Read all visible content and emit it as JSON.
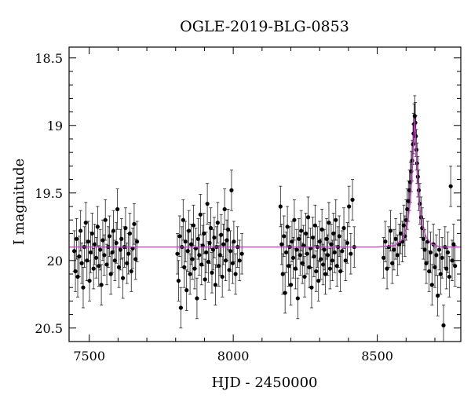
{
  "chart_data": {
    "type": "scatter",
    "title": "OGLE-2019-BLG-0853",
    "xlabel": "HJD - 2450000",
    "ylabel": "I magnitude",
    "xlim": [
      7430,
      8790
    ],
    "ylim": [
      20.6,
      18.42
    ],
    "y_inverted": true,
    "x_ticks": [
      7500,
      8000,
      8500
    ],
    "y_ticks": [
      18.5,
      19,
      19.5,
      20,
      20.5
    ],
    "x_tick_labels": [
      "7500",
      "8000",
      "8500"
    ],
    "y_tick_labels": [
      "18.5",
      "19",
      "19.5",
      "20",
      "20.5"
    ],
    "grid": false,
    "legend": "none",
    "colors": {
      "points": "#000000",
      "model": "#cc33cc",
      "frame": "#000000"
    },
    "baseline_mag": 19.9,
    "observing_seasons": [
      [
        7440,
        7670
      ],
      [
        7800,
        8060
      ],
      [
        8160,
        8430
      ],
      [
        8520,
        8775
      ]
    ],
    "observation_gaps": "no data between seasons",
    "peak": {
      "t0": 8630,
      "peak_mag": 18.93
    },
    "model_curve": {
      "x": [
        7430,
        8000,
        8500,
        8560,
        8590,
        8605,
        8615,
        8622,
        8627,
        8630,
        8633,
        8638,
        8645,
        8655,
        8670,
        8690,
        8720,
        8790
      ],
      "y": [
        19.9,
        19.9,
        19.9,
        19.89,
        19.84,
        19.73,
        19.56,
        19.32,
        19.08,
        18.95,
        19.08,
        19.32,
        19.56,
        19.73,
        19.83,
        19.88,
        19.9,
        19.9
      ]
    },
    "typical_error_bar_mag": 0.15,
    "points": [
      {
        "x": 7448,
        "y": 19.93
      },
      {
        "x": 7452,
        "y": 20.08
      },
      {
        "x": 7456,
        "y": 19.84
      },
      {
        "x": 7460,
        "y": 20.12
      },
      {
        "x": 7465,
        "y": 19.97
      },
      {
        "x": 7470,
        "y": 19.78
      },
      {
        "x": 7474,
        "y": 20.02
      },
      {
        "x": 7479,
        "y": 20.2
      },
      {
        "x": 7483,
        "y": 19.9
      },
      {
        "x": 7488,
        "y": 19.72
      },
      {
        "x": 7492,
        "y": 20.0
      },
      {
        "x": 7497,
        "y": 19.86
      },
      {
        "x": 7501,
        "y": 20.15
      },
      {
        "x": 7505,
        "y": 19.94
      },
      {
        "x": 7510,
        "y": 19.8
      },
      {
        "x": 7515,
        "y": 20.06
      },
      {
        "x": 7519,
        "y": 19.88
      },
      {
        "x": 7524,
        "y": 19.98
      },
      {
        "x": 7529,
        "y": 19.75
      },
      {
        "x": 7533,
        "y": 20.04
      },
      {
        "x": 7538,
        "y": 19.92
      },
      {
        "x": 7542,
        "y": 20.18
      },
      {
        "x": 7547,
        "y": 19.85
      },
      {
        "x": 7552,
        "y": 19.96
      },
      {
        "x": 7556,
        "y": 19.7
      },
      {
        "x": 7561,
        "y": 20.03
      },
      {
        "x": 7566,
        "y": 19.9
      },
      {
        "x": 7570,
        "y": 19.82
      },
      {
        "x": 7575,
        "y": 20.1
      },
      {
        "x": 7580,
        "y": 19.94
      },
      {
        "x": 7584,
        "y": 19.78
      },
      {
        "x": 7589,
        "y": 20.0
      },
      {
        "x": 7594,
        "y": 19.87
      },
      {
        "x": 7598,
        "y": 19.62
      },
      {
        "x": 7603,
        "y": 20.05
      },
      {
        "x": 7608,
        "y": 19.92
      },
      {
        "x": 7612,
        "y": 19.84
      },
      {
        "x": 7617,
        "y": 20.13
      },
      {
        "x": 7622,
        "y": 19.9
      },
      {
        "x": 7626,
        "y": 19.76
      },
      {
        "x": 7631,
        "y": 20.02
      },
      {
        "x": 7636,
        "y": 19.95
      },
      {
        "x": 7641,
        "y": 19.8
      },
      {
        "x": 7646,
        "y": 20.08
      },
      {
        "x": 7651,
        "y": 19.91
      },
      {
        "x": 7656,
        "y": 19.73
      },
      {
        "x": 7661,
        "y": 19.99
      },
      {
        "x": 7666,
        "y": 19.86
      },
      {
        "x": 7806,
        "y": 19.95
      },
      {
        "x": 7810,
        "y": 20.15
      },
      {
        "x": 7814,
        "y": 19.82
      },
      {
        "x": 7818,
        "y": 20.35
      },
      {
        "x": 7822,
        "y": 19.9
      },
      {
        "x": 7826,
        "y": 19.7
      },
      {
        "x": 7830,
        "y": 20.05
      },
      {
        "x": 7834,
        "y": 19.86
      },
      {
        "x": 7838,
        "y": 20.22
      },
      {
        "x": 7842,
        "y": 19.93
      },
      {
        "x": 7846,
        "y": 19.78
      },
      {
        "x": 7850,
        "y": 20.1
      },
      {
        "x": 7854,
        "y": 19.88
      },
      {
        "x": 7858,
        "y": 19.99
      },
      {
        "x": 7862,
        "y": 19.74
      },
      {
        "x": 7866,
        "y": 20.06
      },
      {
        "x": 7870,
        "y": 19.91
      },
      {
        "x": 7874,
        "y": 20.28
      },
      {
        "x": 7878,
        "y": 19.84
      },
      {
        "x": 7882,
        "y": 19.96
      },
      {
        "x": 7886,
        "y": 19.66
      },
      {
        "x": 7890,
        "y": 20.03
      },
      {
        "x": 7894,
        "y": 19.89
      },
      {
        "x": 7898,
        "y": 19.8
      },
      {
        "x": 7902,
        "y": 20.14
      },
      {
        "x": 7906,
        "y": 19.94
      },
      {
        "x": 7910,
        "y": 19.58
      },
      {
        "x": 7914,
        "y": 20.01
      },
      {
        "x": 7918,
        "y": 19.87
      },
      {
        "x": 7922,
        "y": 19.76
      },
      {
        "x": 7926,
        "y": 20.09
      },
      {
        "x": 7930,
        "y": 19.92
      },
      {
        "x": 7934,
        "y": 19.83
      },
      {
        "x": 7938,
        "y": 20.18
      },
      {
        "x": 7942,
        "y": 19.9
      },
      {
        "x": 7946,
        "y": 19.72
      },
      {
        "x": 7950,
        "y": 20.04
      },
      {
        "x": 7954,
        "y": 19.96
      },
      {
        "x": 7958,
        "y": 19.81
      },
      {
        "x": 7962,
        "y": 20.12
      },
      {
        "x": 7966,
        "y": 19.88
      },
      {
        "x": 7970,
        "y": 19.62
      },
      {
        "x": 7974,
        "y": 20.0
      },
      {
        "x": 7978,
        "y": 19.85
      },
      {
        "x": 7982,
        "y": 19.77
      },
      {
        "x": 7986,
        "y": 20.07
      },
      {
        "x": 7990,
        "y": 19.93
      },
      {
        "x": 7994,
        "y": 19.48
      },
      {
        "x": 7998,
        "y": 20.02
      },
      {
        "x": 8002,
        "y": 19.86
      },
      {
        "x": 8008,
        "y": 20.1
      },
      {
        "x": 8015,
        "y": 19.9
      },
      {
        "x": 8022,
        "y": 20.0
      },
      {
        "x": 8030,
        "y": 19.95
      },
      {
        "x": 8164,
        "y": 19.6
      },
      {
        "x": 8168,
        "y": 19.88
      },
      {
        "x": 8172,
        "y": 20.1
      },
      {
        "x": 8176,
        "y": 19.82
      },
      {
        "x": 8180,
        "y": 20.24
      },
      {
        "x": 8184,
        "y": 19.94
      },
      {
        "x": 8188,
        "y": 19.75
      },
      {
        "x": 8192,
        "y": 20.04
      },
      {
        "x": 8196,
        "y": 19.9
      },
      {
        "x": 8200,
        "y": 20.18
      },
      {
        "x": 8204,
        "y": 19.86
      },
      {
        "x": 8208,
        "y": 19.98
      },
      {
        "x": 8212,
        "y": 19.7
      },
      {
        "x": 8216,
        "y": 20.06
      },
      {
        "x": 8220,
        "y": 19.92
      },
      {
        "x": 8224,
        "y": 20.28
      },
      {
        "x": 8228,
        "y": 19.84
      },
      {
        "x": 8232,
        "y": 19.96
      },
      {
        "x": 8236,
        "y": 19.78
      },
      {
        "x": 8240,
        "y": 20.02
      },
      {
        "x": 8244,
        "y": 19.89
      },
      {
        "x": 8248,
        "y": 20.12
      },
      {
        "x": 8252,
        "y": 19.8
      },
      {
        "x": 8256,
        "y": 19.95
      },
      {
        "x": 8260,
        "y": 19.68
      },
      {
        "x": 8264,
        "y": 20.05
      },
      {
        "x": 8268,
        "y": 19.91
      },
      {
        "x": 8272,
        "y": 20.2
      },
      {
        "x": 8276,
        "y": 19.83
      },
      {
        "x": 8280,
        "y": 19.97
      },
      {
        "x": 8284,
        "y": 19.74
      },
      {
        "x": 8288,
        "y": 20.08
      },
      {
        "x": 8292,
        "y": 19.9
      },
      {
        "x": 8296,
        "y": 20.15
      },
      {
        "x": 8300,
        "y": 19.86
      },
      {
        "x": 8304,
        "y": 19.99
      },
      {
        "x": 8308,
        "y": 19.77
      },
      {
        "x": 8312,
        "y": 20.03
      },
      {
        "x": 8316,
        "y": 19.92
      },
      {
        "x": 8320,
        "y": 20.1
      },
      {
        "x": 8324,
        "y": 19.84
      },
      {
        "x": 8328,
        "y": 19.96
      },
      {
        "x": 8332,
        "y": 19.72
      },
      {
        "x": 8336,
        "y": 20.06
      },
      {
        "x": 8340,
        "y": 19.88
      },
      {
        "x": 8344,
        "y": 20.0
      },
      {
        "x": 8348,
        "y": 19.8
      },
      {
        "x": 8352,
        "y": 19.94
      },
      {
        "x": 8356,
        "y": 19.7
      },
      {
        "x": 8360,
        "y": 20.04
      },
      {
        "x": 8364,
        "y": 19.9
      },
      {
        "x": 8368,
        "y": 19.82
      },
      {
        "x": 8372,
        "y": 20.08
      },
      {
        "x": 8378,
        "y": 19.93
      },
      {
        "x": 8384,
        "y": 19.76
      },
      {
        "x": 8390,
        "y": 20.0
      },
      {
        "x": 8396,
        "y": 19.87
      },
      {
        "x": 8402,
        "y": 19.6
      },
      {
        "x": 8408,
        "y": 19.95
      },
      {
        "x": 8414,
        "y": 19.55
      },
      {
        "x": 8420,
        "y": 19.9
      },
      {
        "x": 8522,
        "y": 19.98
      },
      {
        "x": 8528,
        "y": 19.86
      },
      {
        "x": 8534,
        "y": 20.06
      },
      {
        "x": 8540,
        "y": 19.9
      },
      {
        "x": 8546,
        "y": 19.78
      },
      {
        "x": 8552,
        "y": 20.02
      },
      {
        "x": 8558,
        "y": 19.92
      },
      {
        "x": 8564,
        "y": 19.84
      },
      {
        "x": 8570,
        "y": 19.96
      },
      {
        "x": 8576,
        "y": 19.88
      },
      {
        "x": 8582,
        "y": 19.8
      },
      {
        "x": 8587,
        "y": 19.86
      },
      {
        "x": 8592,
        "y": 19.74
      },
      {
        "x": 8596,
        "y": 19.82
      },
      {
        "x": 8600,
        "y": 19.7
      },
      {
        "x": 8604,
        "y": 19.62
      },
      {
        "x": 8608,
        "y": 19.56
      },
      {
        "x": 8612,
        "y": 19.48
      },
      {
        "x": 8615,
        "y": 19.42
      },
      {
        "x": 8618,
        "y": 19.34
      },
      {
        "x": 8621,
        "y": 19.26
      },
      {
        "x": 8624,
        "y": 19.14
      },
      {
        "x": 8626,
        "y": 19.06
      },
      {
        "x": 8628,
        "y": 18.99
      },
      {
        "x": 8630,
        "y": 18.93
      },
      {
        "x": 8632,
        "y": 18.98
      },
      {
        "x": 8634,
        "y": 19.08
      },
      {
        "x": 8636,
        "y": 19.18
      },
      {
        "x": 8638,
        "y": 19.28
      },
      {
        "x": 8641,
        "y": 19.38
      },
      {
        "x": 8644,
        "y": 19.48
      },
      {
        "x": 8648,
        "y": 19.58
      },
      {
        "x": 8652,
        "y": 19.68
      },
      {
        "x": 8656,
        "y": 19.76
      },
      {
        "x": 8660,
        "y": 19.84
      },
      {
        "x": 8665,
        "y": 19.92
      },
      {
        "x": 8670,
        "y": 20.02
      },
      {
        "x": 8675,
        "y": 19.86
      },
      {
        "x": 8680,
        "y": 20.08
      },
      {
        "x": 8685,
        "y": 19.94
      },
      {
        "x": 8690,
        "y": 20.18
      },
      {
        "x": 8695,
        "y": 19.88
      },
      {
        "x": 8700,
        "y": 20.05
      },
      {
        "x": 8705,
        "y": 19.96
      },
      {
        "x": 8710,
        "y": 20.26
      },
      {
        "x": 8715,
        "y": 19.92
      },
      {
        "x": 8720,
        "y": 20.1
      },
      {
        "x": 8725,
        "y": 19.98
      },
      {
        "x": 8730,
        "y": 20.48
      },
      {
        "x": 8735,
        "y": 19.9
      },
      {
        "x": 8740,
        "y": 20.06
      },
      {
        "x": 8745,
        "y": 19.94
      },
      {
        "x": 8750,
        "y": 20.12
      },
      {
        "x": 8755,
        "y": 19.45
      },
      {
        "x": 8760,
        "y": 20.0
      },
      {
        "x": 8765,
        "y": 19.88
      },
      {
        "x": 8770,
        "y": 20.04
      }
    ]
  }
}
